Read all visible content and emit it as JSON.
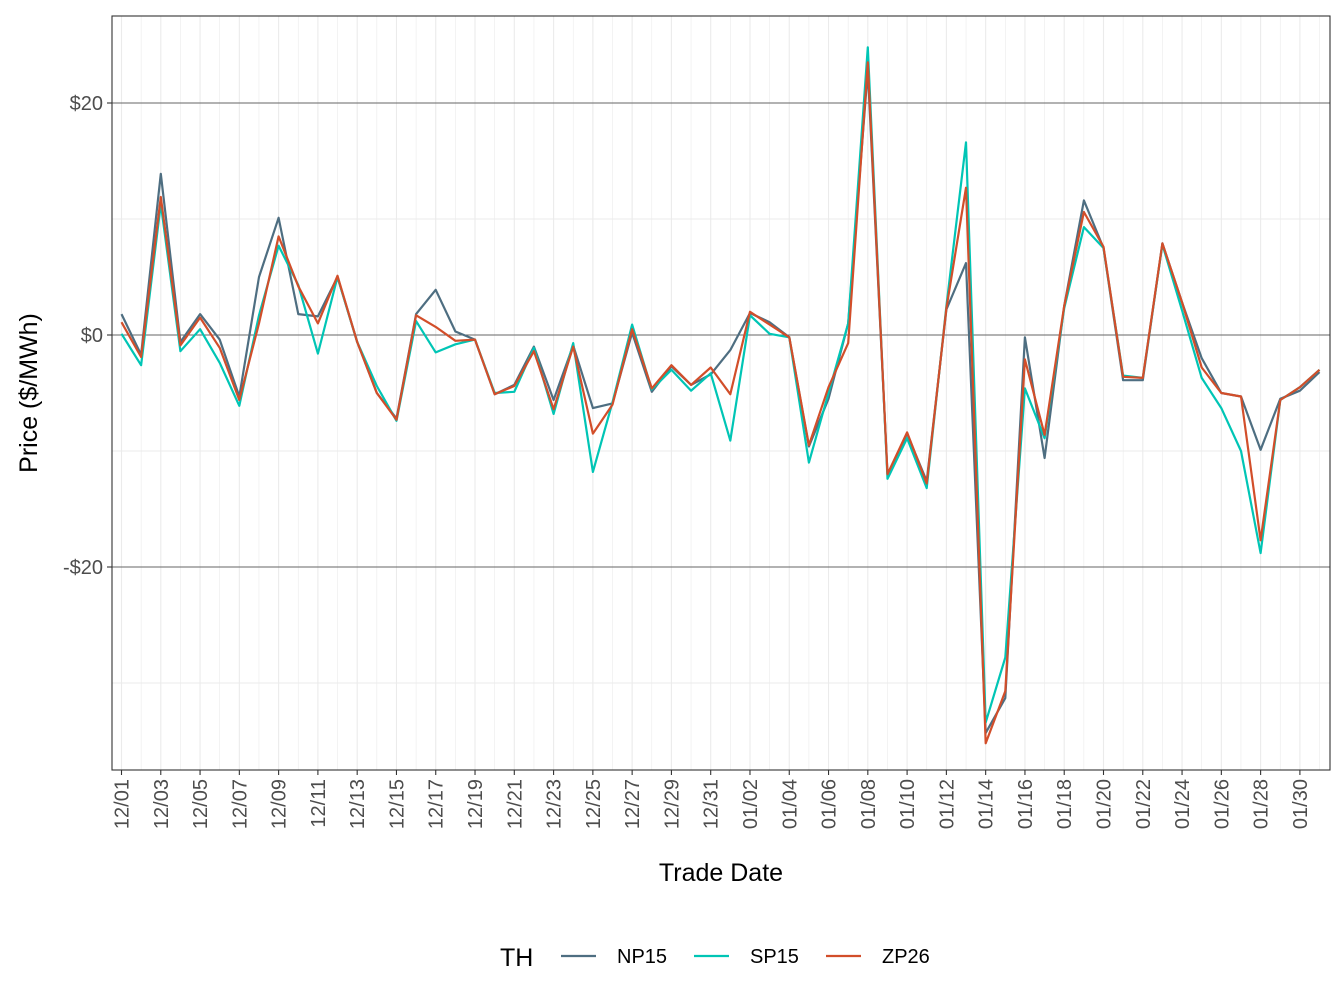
{
  "chart_data": {
    "type": "line",
    "xlabel": "Trade Date",
    "ylabel": "Price ($/MWh)",
    "ylim": [
      -37.5,
      27.5
    ],
    "y_ticks": [
      {
        "value": 20,
        "label": "$20"
      },
      {
        "value": 0,
        "label": "$0"
      },
      {
        "value": -20,
        "label": "-$20"
      }
    ],
    "x_tick_labels": [
      "12/01",
      "12/03",
      "12/05",
      "12/07",
      "12/09",
      "12/11",
      "12/13",
      "12/15",
      "12/17",
      "12/19",
      "12/21",
      "12/23",
      "12/25",
      "12/27",
      "12/29",
      "12/31",
      "01/02",
      "01/04",
      "01/06",
      "01/08",
      "01/10",
      "01/12",
      "01/14",
      "01/16",
      "01/18",
      "01/20",
      "01/22",
      "01/24",
      "01/26",
      "01/28",
      "01/30"
    ],
    "x_dates": [
      "12/01",
      "12/02",
      "12/03",
      "12/04",
      "12/05",
      "12/06",
      "12/07",
      "12/08",
      "12/09",
      "12/10",
      "12/11",
      "12/12",
      "12/13",
      "12/14",
      "12/15",
      "12/16",
      "12/17",
      "12/18",
      "12/19",
      "12/20",
      "12/21",
      "12/22",
      "12/23",
      "12/24",
      "12/25",
      "12/26",
      "12/27",
      "12/28",
      "12/29",
      "12/30",
      "12/31",
      "01/01",
      "01/02",
      "01/03",
      "01/04",
      "01/05",
      "01/06",
      "01/07",
      "01/08",
      "01/09",
      "01/10",
      "01/11",
      "01/12",
      "01/13",
      "01/14",
      "01/15",
      "01/16",
      "01/17",
      "01/18",
      "01/19",
      "01/20",
      "01/21",
      "01/22",
      "01/23",
      "01/24",
      "01/25",
      "01/26",
      "01/27",
      "01/28",
      "01/29",
      "01/30",
      "01/31"
    ],
    "legend": {
      "title": "TH",
      "position": "bottom"
    },
    "grid": true,
    "series": [
      {
        "name": "NP15",
        "color": "#4e6e81",
        "values": [
          1.8,
          -1.7,
          13.9,
          -0.6,
          1.8,
          -0.4,
          -5.3,
          5.0,
          10.1,
          1.8,
          1.6,
          5.0,
          -0.6,
          -5.0,
          -7.2,
          1.8,
          3.9,
          0.3,
          -0.4,
          -5.1,
          -4.3,
          -1.0,
          -5.6,
          -0.9,
          -6.3,
          -5.9,
          0.2,
          -4.9,
          -2.7,
          -4.3,
          -3.4,
          -1.3,
          1.9,
          1.1,
          -0.2,
          -9.6,
          -5.5,
          1.0,
          22.8,
          -12.0,
          -8.5,
          -12.6,
          2.2,
          6.2,
          -34.3,
          -31.3,
          -0.2,
          -10.6,
          2.5,
          11.6,
          7.5,
          -3.9,
          -3.9,
          7.9,
          2.8,
          -2.0,
          -5.0,
          -5.3,
          -9.9,
          -5.5,
          -4.8,
          -3.2
        ]
      },
      {
        "name": "SP15",
        "color": "#00c5b5",
        "values": [
          0.1,
          -2.6,
          11.3,
          -1.4,
          0.5,
          -2.4,
          -6.1,
          1.7,
          7.7,
          4.3,
          -1.6,
          5.0,
          -0.6,
          -4.4,
          -7.4,
          1.2,
          -1.5,
          -0.8,
          -0.4,
          -5.0,
          -4.9,
          -1.1,
          -6.8,
          -0.7,
          -11.8,
          -5.8,
          0.9,
          -4.7,
          -3.0,
          -4.8,
          -3.3,
          -9.1,
          1.7,
          0.1,
          -0.2,
          -11.0,
          -5.0,
          1.0,
          24.8,
          -12.4,
          -8.9,
          -13.2,
          2.5,
          16.6,
          -33.4,
          -27.8,
          -4.6,
          -8.9,
          2.3,
          9.3,
          7.5,
          -3.5,
          -3.7,
          7.8,
          2.1,
          -3.7,
          -6.3,
          -10.0,
          -18.8,
          -5.6,
          -4.5,
          -3.0
        ]
      },
      {
        "name": "ZP26",
        "color": "#d24e2a",
        "values": [
          1.1,
          -1.9,
          11.9,
          -0.9,
          1.5,
          -1.1,
          -5.6,
          1.0,
          8.5,
          4.2,
          1.0,
          5.1,
          -0.6,
          -5.0,
          -7.3,
          1.7,
          0.7,
          -0.5,
          -0.4,
          -5.1,
          -4.4,
          -1.4,
          -6.4,
          -1.0,
          -8.5,
          -6.0,
          0.5,
          -4.6,
          -2.6,
          -4.3,
          -2.8,
          -5.1,
          2.0,
          0.9,
          -0.2,
          -9.5,
          -4.5,
          -0.7,
          23.5,
          -12.0,
          -8.4,
          -12.8,
          2.3,
          12.7,
          -35.2,
          -30.7,
          -2.1,
          -8.6,
          2.5,
          10.6,
          7.6,
          -3.6,
          -3.7,
          7.9,
          2.8,
          -2.8,
          -5.0,
          -5.3,
          -17.7,
          -5.6,
          -4.5,
          -3.0
        ]
      }
    ]
  }
}
